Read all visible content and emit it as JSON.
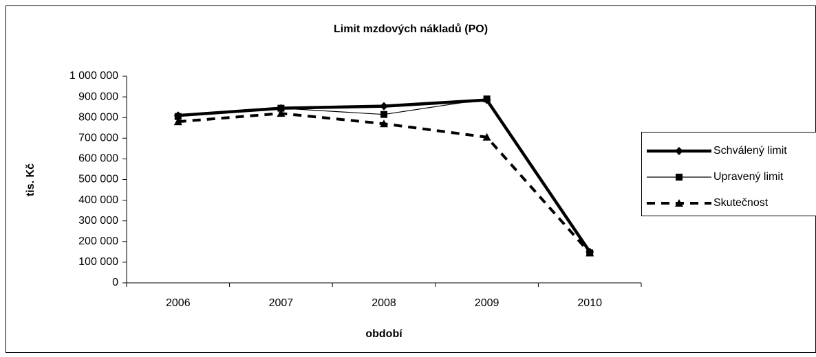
{
  "chart_data": {
    "type": "line",
    "title": "Limit mzdových nákladů (PO)",
    "x_label": "období",
    "y_label": "tis. Kč",
    "categories": [
      "2006",
      "2007",
      "2008",
      "2009",
      "2010"
    ],
    "series": [
      {
        "name": "Schválený limit",
        "color": "#000000",
        "marker": "diamond",
        "values": [
          810000,
          845000,
          855000,
          885000,
          150000
        ]
      },
      {
        "name": "Upravený limit",
        "color": "#000000",
        "marker": "square",
        "values": [
          805000,
          845000,
          815000,
          890000,
          145000
        ]
      },
      {
        "name": "Skutečnost",
        "color": "#000000",
        "marker": "triangle",
        "dashed": true,
        "values": [
          780000,
          820000,
          770000,
          705000,
          145000
        ]
      }
    ],
    "ylim": [
      0,
      1000000
    ],
    "yticks": [
      0,
      {
        "value": 100000,
        "label": "100 000"
      },
      {
        "value": 200000,
        "label": "200 000"
      },
      {
        "value": 300000,
        "label": "300 000"
      },
      {
        "value": 400000,
        "label": "400 000"
      },
      {
        "value": 500000,
        "label": "500 000"
      },
      {
        "value": 600000,
        "label": "600 000"
      },
      {
        "value": 700000,
        "label": "700 000"
      },
      {
        "value": 800000,
        "label": "800 000"
      },
      {
        "value": 900000,
        "label": "900 000"
      },
      {
        "value": 1000000,
        "label": "1 000 000"
      }
    ],
    "grid": false,
    "legend": "right"
  }
}
